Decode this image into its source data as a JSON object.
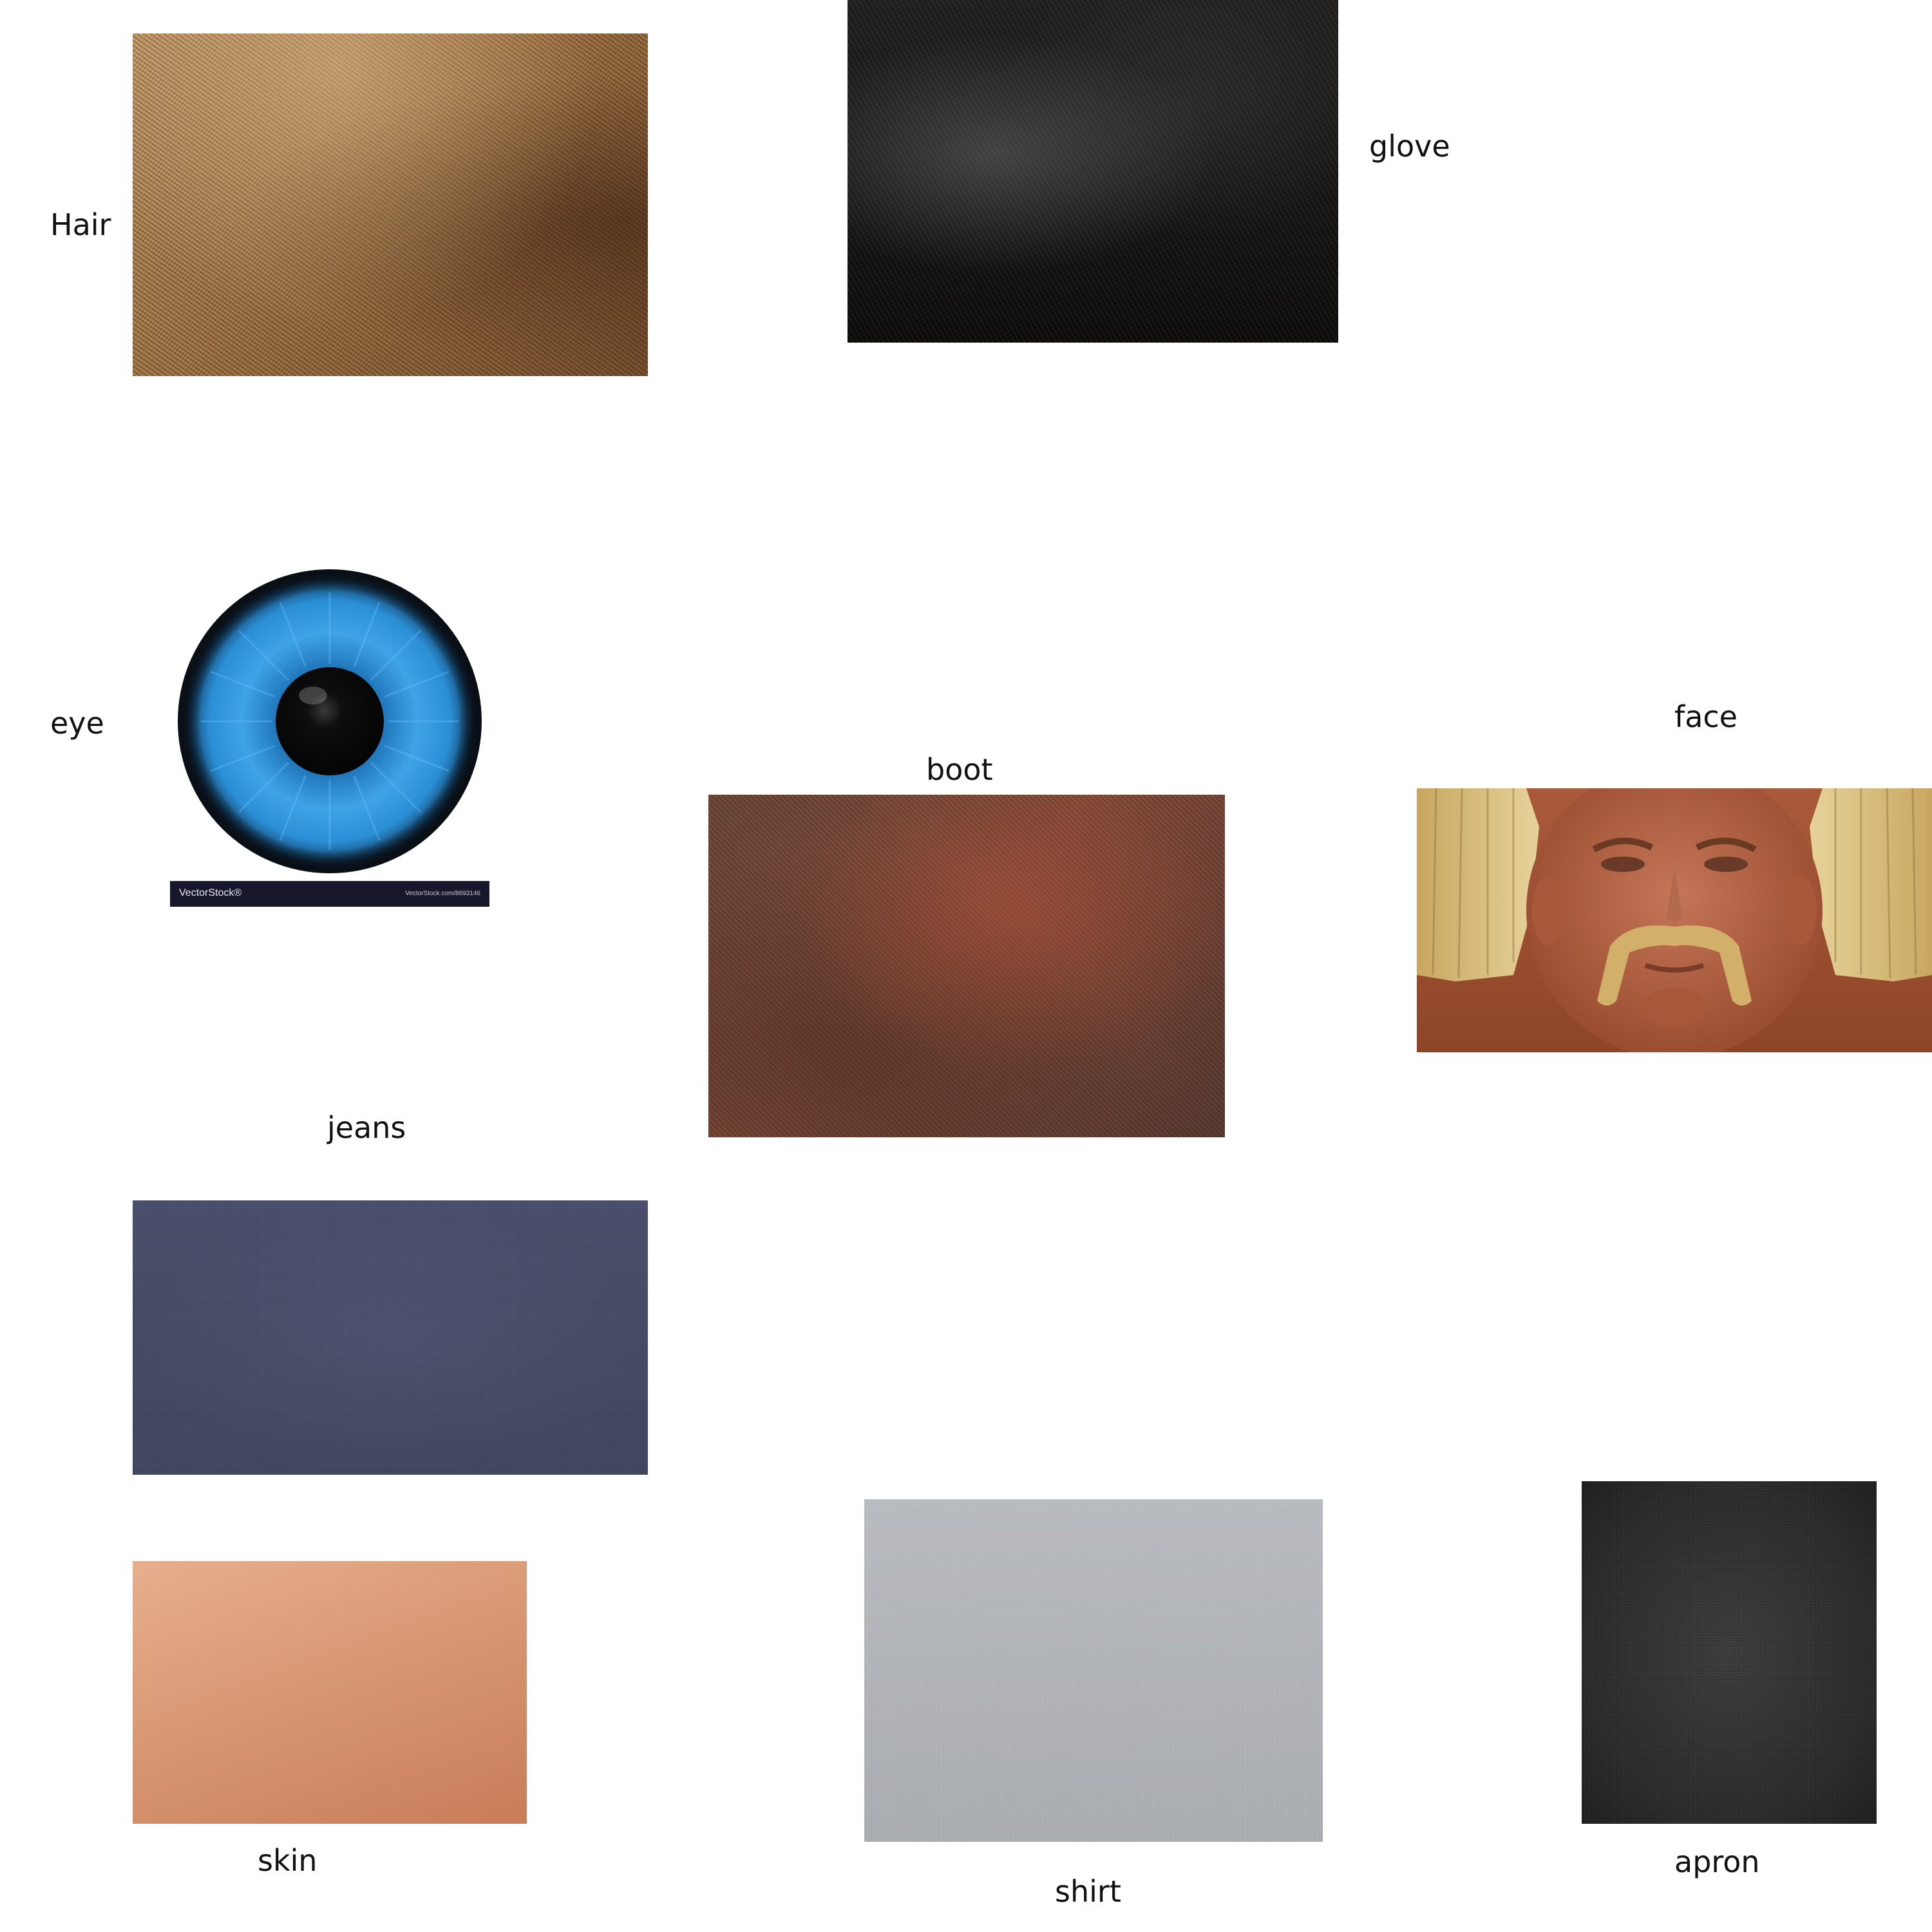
{
  "labels": {
    "hair": "Hair",
    "glove": "glove",
    "eye": "eye",
    "boot": "boot",
    "face": "face",
    "jeans": "jeans",
    "skin": "skin",
    "shirt": "shirt",
    "apron": "apron"
  },
  "eye_image": {
    "watermark_left": "VectorStock®",
    "watermark_right": "VectorStock.com/8693146"
  },
  "colors": {
    "background": "#ffffff",
    "label_text": "#111111",
    "iris": "#2b8fd6",
    "pupil": "#050505"
  }
}
